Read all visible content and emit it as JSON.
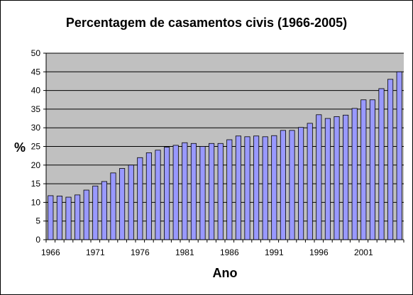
{
  "chart_data": {
    "type": "bar",
    "title": "Percentagem de casamentos civis (1966-2005)",
    "xlabel": "Ano",
    "ylabel": "%",
    "ylim": [
      0,
      50
    ],
    "y_ticks": [
      0,
      5,
      10,
      15,
      20,
      25,
      30,
      35,
      40,
      45,
      50
    ],
    "x_tick_labels": [
      "1966",
      "1971",
      "1976",
      "1981",
      "1986",
      "1991",
      "1996",
      "2001"
    ],
    "grid": "horizontal",
    "legend": "none",
    "colors": {
      "bar_fill": "#9999ff",
      "bar_stroke": "#000000",
      "plot_background": "#c0c0c0",
      "gridline": "#000000"
    },
    "categories": [
      "1966",
      "1967",
      "1968",
      "1969",
      "1970",
      "1971",
      "1972",
      "1973",
      "1974",
      "1975",
      "1976",
      "1977",
      "1978",
      "1979",
      "1980",
      "1981",
      "1982",
      "1983",
      "1984",
      "1985",
      "1986",
      "1987",
      "1988",
      "1989",
      "1990",
      "1991",
      "1992",
      "1993",
      "1994",
      "1995",
      "1996",
      "1997",
      "1998",
      "1999",
      "2000",
      "2001",
      "2002",
      "2003",
      "2004",
      "2005"
    ],
    "values": [
      11.8,
      11.7,
      11.4,
      12.0,
      13.3,
      14.4,
      15.6,
      17.9,
      19.1,
      20.0,
      22.0,
      23.3,
      24.0,
      24.8,
      25.3,
      26.0,
      25.8,
      25.0,
      25.8,
      25.8,
      26.8,
      27.8,
      27.6,
      27.8,
      27.6,
      27.9,
      29.3,
      29.3,
      30.1,
      31.2,
      33.5,
      32.5,
      33.0,
      33.4,
      35.2,
      37.5,
      37.5,
      40.5,
      43.0,
      45.0
    ]
  }
}
